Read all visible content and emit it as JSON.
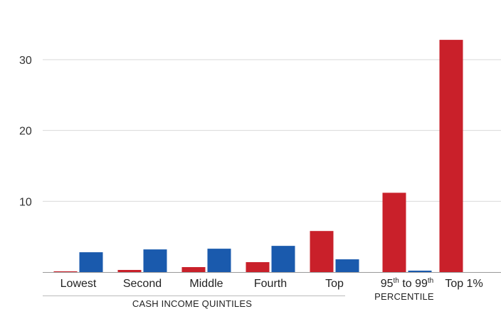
{
  "chart_data": {
    "type": "bar",
    "categories": [
      "Lowest",
      "Second",
      "Middle",
      "Fourth",
      "Top",
      "95th to 99th",
      "Top 1%"
    ],
    "category_label_parts": [
      {
        "text": "Lowest"
      },
      {
        "text": "Second"
      },
      {
        "text": "Middle"
      },
      {
        "text": "Fourth"
      },
      {
        "text": "Top"
      },
      {
        "base1": "95",
        "sup1": "th",
        "mid": " to 99",
        "sup2": "th"
      },
      {
        "text": "Top 1%"
      }
    ],
    "series": [
      {
        "color": "#c9202a",
        "values": [
          0.1,
          0.3,
          0.7,
          1.4,
          5.8,
          11.2,
          32.8
        ]
      },
      {
        "color": "#1a5aad",
        "values": [
          2.8,
          3.2,
          3.3,
          3.7,
          1.8,
          0.2,
          0.0
        ]
      }
    ],
    "ylim": [
      0,
      34
    ],
    "yticks": [
      10,
      20,
      30
    ],
    "tick_labels": [
      "10",
      "20",
      "30"
    ],
    "group_labels": {
      "quintiles": "CASH INCOME QUINTILES",
      "percentile": "PERCENTILE"
    },
    "grid": true,
    "xlabel": "",
    "ylabel": ""
  }
}
